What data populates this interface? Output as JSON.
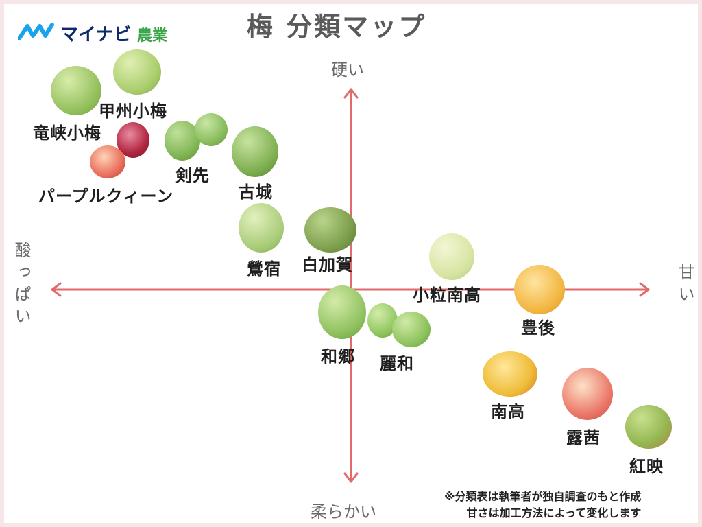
{
  "logo": {
    "brand": "マイナビ",
    "sub": "農業"
  },
  "title": "梅 分類マップ",
  "axes": {
    "top": "硬い",
    "bottom": "柔らかい",
    "left": "酸っぱい",
    "right": "甘い"
  },
  "varieties": {
    "ryukyo": "竜峡小梅",
    "koshu": "甲州小梅",
    "purple": "パープルクィーン",
    "kensaki": "剣先",
    "kojiro": "古城",
    "uguisu": "鶯宿",
    "shirokaga": "白加賀",
    "kotsubu": "小粒南高",
    "bungo": "豊後",
    "wago": "和郷",
    "reiwa": "麗和",
    "nanko": "南高",
    "roake": "露茜",
    "beniei": "紅映"
  },
  "note": {
    "line1": "※分類表は執筆者が独自調査のもと作成",
    "line2": "甘さは加工方法によって変化します"
  },
  "colors": {
    "axis": "#e26a6a",
    "brand": "#0e2a6e",
    "brand_accent": "#3aa54a"
  }
}
